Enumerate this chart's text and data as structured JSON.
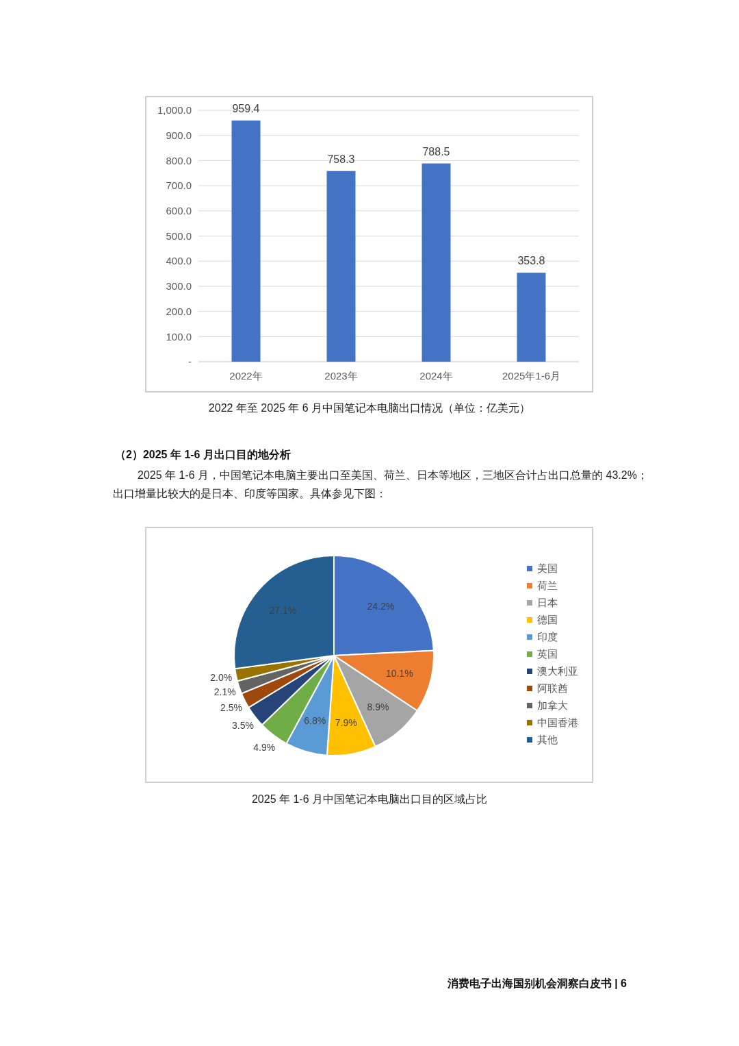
{
  "chart_data": [
    {
      "type": "bar",
      "title": "2022 年至 2025 年 6 月中国笔记本电脑出口情况（单位：亿美元）",
      "categories": [
        "2022年",
        "2023年",
        "2024年",
        "2025年1-6月"
      ],
      "values": [
        959.4,
        758.3,
        788.5,
        353.8
      ],
      "color": "#4472c4",
      "ylim": [
        0,
        1000
      ],
      "yticks": [
        {
          "value": 0,
          "label": "-"
        },
        {
          "value": 100,
          "label": "100.0"
        },
        {
          "value": 200,
          "label": "200.0"
        },
        {
          "value": 300,
          "label": "300.0"
        },
        {
          "value": 400,
          "label": "400.0"
        },
        {
          "value": 500,
          "label": "500.0"
        },
        {
          "value": 600,
          "label": "600.0"
        },
        {
          "value": 700,
          "label": "700.0"
        },
        {
          "value": 800,
          "label": "800.0"
        },
        {
          "value": 900,
          "label": "900.0"
        },
        {
          "value": 1000,
          "label": "1,000.0"
        }
      ],
      "grid": "y",
      "data_labels": true
    },
    {
      "type": "pie",
      "title": "2025 年 1-6 月中国笔记本电脑出口目的区域占比",
      "categories": [
        "美国",
        "荷兰",
        "日本",
        "德国",
        "印度",
        "英国",
        "澳大利亚",
        "阿联酋",
        "加拿大",
        "中国香港",
        "其他"
      ],
      "values": [
        24.2,
        10.1,
        8.9,
        7.9,
        6.8,
        4.9,
        3.5,
        2.5,
        2.1,
        2.0,
        27.1
      ],
      "colors": [
        "#4472c4",
        "#ed7d31",
        "#a5a5a5",
        "#ffc000",
        "#5b9bd5",
        "#70ad47",
        "#264478",
        "#9e480e",
        "#636363",
        "#997300",
        "#255e91"
      ],
      "value_labels": [
        "24.2%",
        "10.1%",
        "8.9%",
        "7.9%",
        "6.8%",
        "4.9%",
        "3.5%",
        "2.5%",
        "2.1%",
        "2.0%",
        "27.1%"
      ],
      "legend": "right",
      "annotations": [
        "（2）2025 年 1-6 月出口目的地分析",
        "2025 年 1-6 月，中国笔记本电脑主要出口至美国、荷兰、日本等地区，三地区合计占出口总量的 43.2%；",
        "出口增量比较大的是日本、印度等国家。具体参见下图：",
        "消费电子出海国别机会洞察白皮书 | 6"
      ]
    }
  ]
}
